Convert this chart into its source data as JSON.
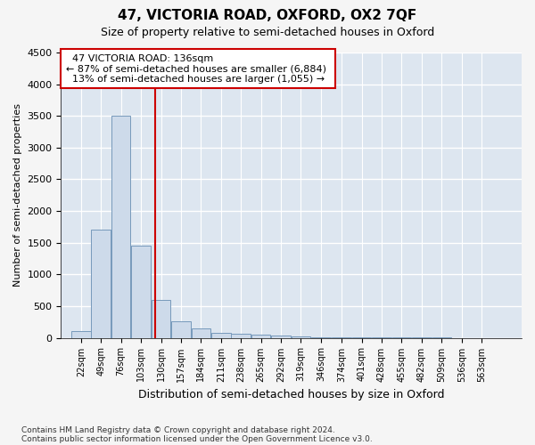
{
  "title": "47, VICTORIA ROAD, OXFORD, OX2 7QF",
  "subtitle": "Size of property relative to semi-detached houses in Oxford",
  "xlabel": "Distribution of semi-detached houses by size in Oxford",
  "ylabel": "Number of semi-detached properties",
  "footnote1": "Contains HM Land Registry data © Crown copyright and database right 2024.",
  "footnote2": "Contains public sector information licensed under the Open Government Licence v3.0.",
  "annotation_line1": "47 VICTORIA ROAD: 136sqm",
  "annotation_line2": "← 87% of semi-detached houses are smaller (6,884)",
  "annotation_line3": "13% of semi-detached houses are larger (1,055) →",
  "property_size": 136,
  "bar_color": "#cddaea",
  "bar_edge_color": "#7799bb",
  "red_line_color": "#cc0000",
  "annotation_box_color": "#ffffff",
  "annotation_box_edge": "#cc0000",
  "ylim": [
    0,
    4500
  ],
  "yticks": [
    0,
    500,
    1000,
    1500,
    2000,
    2500,
    3000,
    3500,
    4000,
    4500
  ],
  "bin_labels": [
    "22sqm",
    "49sqm",
    "76sqm",
    "103sqm",
    "130sqm",
    "157sqm",
    "184sqm",
    "211sqm",
    "238sqm",
    "265sqm",
    "292sqm",
    "319sqm",
    "346sqm",
    "374sqm",
    "401sqm",
    "428sqm",
    "455sqm",
    "482sqm",
    "509sqm",
    "536sqm",
    "563sqm"
  ],
  "bin_edges": [
    22,
    49,
    76,
    103,
    130,
    157,
    184,
    211,
    238,
    265,
    292,
    319,
    346,
    374,
    401,
    428,
    455,
    482,
    509,
    536,
    563,
    590
  ],
  "bar_heights": [
    100,
    1700,
    3500,
    1450,
    600,
    260,
    150,
    80,
    60,
    50,
    35,
    20,
    10,
    5,
    3,
    2,
    1,
    1,
    1,
    0,
    0
  ],
  "background_color": "#dde6f0",
  "grid_color": "#ffffff",
  "fig_facecolor": "#f5f5f5"
}
